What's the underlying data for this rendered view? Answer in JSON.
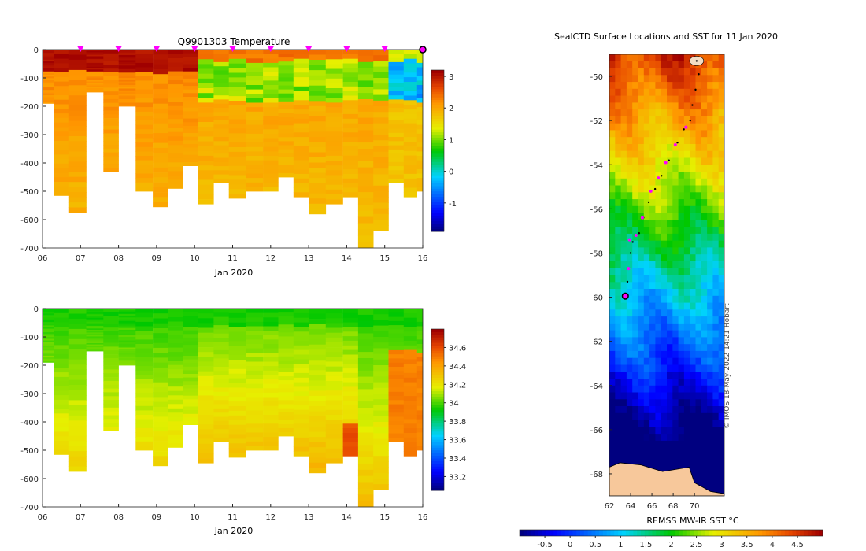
{
  "chart_data": [
    {
      "type": "heatmap",
      "title": "Q9901303  Temperature",
      "xlabel": "Jan 2020",
      "ylabel": "",
      "x_ticks": [
        "06",
        "07",
        "08",
        "09",
        "10",
        "11",
        "12",
        "13",
        "14",
        "15",
        "16"
      ],
      "y_ticks": [
        "0",
        "-100",
        "-200",
        "-300",
        "-400",
        "-500",
        "-600",
        "-700"
      ],
      "xlim": [
        6,
        16
      ],
      "ylim": [
        -700,
        0
      ],
      "colorbar": {
        "ticks": [
          "-1",
          "0",
          "1",
          "2",
          "3"
        ],
        "range": [
          -1.9,
          3.2
        ]
      },
      "profile_days": [
        6.1,
        6.5,
        6.9,
        7.4,
        7.8,
        8.2,
        8.7,
        9.1,
        9.5,
        9.9,
        10.3,
        10.7,
        11.1,
        11.6,
        12.0,
        12.4,
        12.8,
        13.2,
        13.7,
        14.1,
        14.5,
        14.9,
        15.3,
        15.7,
        16.0
      ],
      "profile_max_depths": [
        190,
        515,
        575,
        150,
        430,
        200,
        500,
        555,
        490,
        410,
        545,
        470,
        525,
        500,
        500,
        450,
        520,
        580,
        545,
        520,
        700,
        640,
        470,
        520,
        500
      ],
      "surface_markers_days": [
        "7",
        "8",
        "9",
        "10",
        "11",
        "12",
        "13",
        "14",
        "15"
      ],
      "current_position_day": 16.0
    },
    {
      "type": "heatmap",
      "title": "",
      "xlabel": "Jan 2020",
      "ylabel": "",
      "x_ticks": [
        "06",
        "07",
        "08",
        "09",
        "10",
        "11",
        "12",
        "13",
        "14",
        "15",
        "16"
      ],
      "y_ticks": [
        "0",
        "-100",
        "-200",
        "-300",
        "-400",
        "-500",
        "-600",
        "-700"
      ],
      "xlim": [
        6,
        16
      ],
      "ylim": [
        -700,
        0
      ],
      "colorbar": {
        "ticks": [
          "33.2",
          "33.4",
          "33.6",
          "33.8",
          "34",
          "34.2",
          "34.4",
          "34.6"
        ],
        "range": [
          33.05,
          34.8
        ]
      }
    },
    {
      "type": "heatmap",
      "title": "SealCTD Surface Locations and SST for 11 Jan 2020",
      "xlabel": "",
      "ylabel": "",
      "x_ticks": [
        "62",
        "64",
        "66",
        "68",
        "70"
      ],
      "y_ticks": [
        "-50",
        "-52",
        "-54",
        "-56",
        "-58",
        "-60",
        "-62",
        "-64",
        "-66",
        "-68"
      ],
      "xlim": [
        62,
        72.8
      ],
      "ylim": [
        -69,
        -49
      ],
      "colorbar": {
        "label": "REMSS MW-IR SST °C",
        "ticks": [
          "-0.5",
          "0",
          "0.5",
          "1",
          "1.5",
          "2",
          "2.5",
          "3",
          "3.5",
          "4",
          "4.5"
        ],
        "range": [
          -1.0,
          5.0
        ]
      },
      "track": [
        [
          70.2,
          -49.3
        ],
        [
          70.4,
          -49.9
        ],
        [
          70.1,
          -50.6
        ],
        [
          69.8,
          -51.3
        ],
        [
          69.6,
          -52.0
        ],
        [
          69.0,
          -52.4
        ],
        [
          68.4,
          -53.0
        ],
        [
          67.6,
          -53.8
        ],
        [
          66.9,
          -54.5
        ],
        [
          66.3,
          -55.1
        ],
        [
          65.7,
          -55.7
        ],
        [
          65.2,
          -56.4
        ],
        [
          64.8,
          -57.1
        ],
        [
          64.2,
          -57.5
        ],
        [
          64.0,
          -58.0
        ],
        [
          63.8,
          -58.7
        ],
        [
          63.7,
          -59.3
        ],
        [
          63.5,
          -59.9
        ]
      ],
      "daily_positions": [
        [
          69.2,
          -52.3
        ],
        [
          68.2,
          -53.1
        ],
        [
          67.3,
          -53.9
        ],
        [
          66.6,
          -54.6
        ],
        [
          65.9,
          -55.2
        ],
        [
          65.1,
          -56.4
        ],
        [
          64.5,
          -57.2
        ],
        [
          63.9,
          -57.4
        ],
        [
          63.8,
          -58.7
        ]
      ],
      "current_position": [
        63.5,
        -59.95
      ],
      "land_color": "#f7c89b"
    }
  ],
  "credit": "© IMOS 18-May-2022 14:21 Hobart"
}
